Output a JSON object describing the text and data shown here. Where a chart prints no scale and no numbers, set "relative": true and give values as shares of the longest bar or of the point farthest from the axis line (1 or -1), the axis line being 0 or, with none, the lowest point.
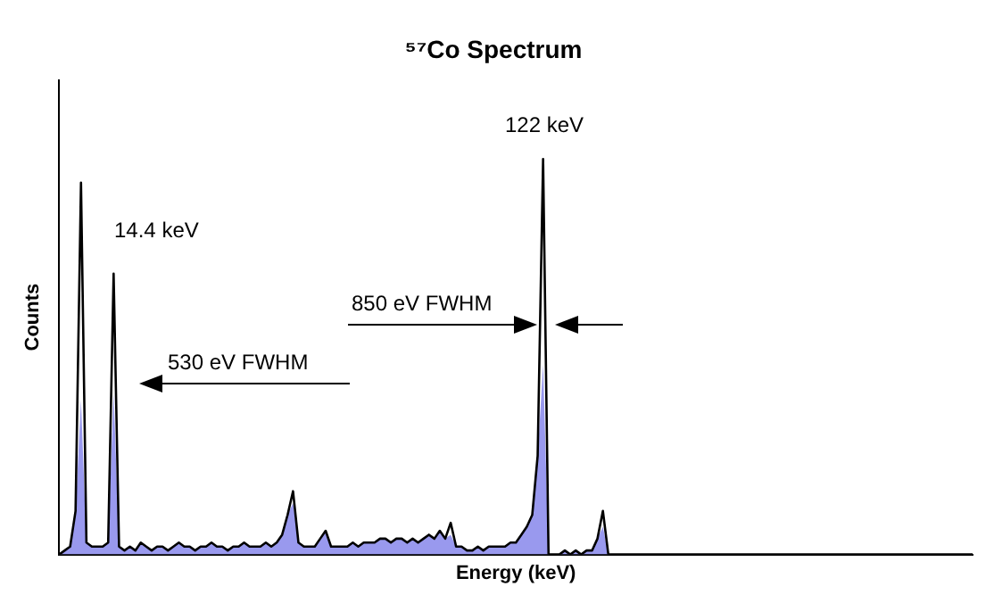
{
  "chart_data": {
    "type": "area",
    "title": "⁵⁷Co Spectrum",
    "xlabel": "Energy (keV)",
    "ylabel": "Counts",
    "relative": true,
    "legend": false,
    "grid": false,
    "categories": [
      null,
      null,
      null,
      null,
      null,
      null,
      null,
      null,
      null,
      null,
      null,
      null,
      null,
      null,
      null,
      null,
      null,
      null,
      null,
      null,
      null,
      null,
      null,
      null,
      null,
      null,
      null,
      null,
      null,
      null,
      null,
      null,
      null,
      null,
      null,
      null,
      null,
      null,
      null,
      null,
      null,
      null,
      null,
      null,
      null,
      null,
      null,
      null,
      null,
      null,
      null,
      null,
      null,
      null,
      null,
      null,
      null,
      null,
      null,
      null,
      null,
      null,
      null,
      null,
      null,
      null,
      null,
      null,
      null,
      null,
      null,
      null,
      null,
      null,
      null,
      null,
      null,
      null,
      null,
      null,
      null,
      null,
      null,
      null,
      null,
      null,
      null,
      null,
      null,
      null,
      null,
      null,
      null,
      null,
      null,
      null,
      null,
      null,
      null,
      null,
      null,
      null,
      null,
      null,
      null,
      null,
      null,
      null,
      null,
      null,
      null,
      null,
      null,
      null,
      null,
      null,
      null,
      null,
      null,
      null,
      null,
      null,
      null,
      null,
      null,
      null,
      null,
      null,
      null,
      null,
      null,
      null,
      null,
      null,
      null,
      null,
      null,
      null,
      null,
      null,
      null,
      null,
      null,
      null,
      null,
      null,
      null,
      null,
      null,
      null,
      null,
      null,
      null,
      null,
      null,
      null,
      null,
      null,
      null,
      null,
      null,
      null,
      null,
      null,
      null,
      null,
      null,
      null,
      null
    ],
    "series": [
      {
        "color": "#9999ee",
        "values": [
          0,
          0.01,
          0.02,
          0.11,
          0.39,
          0.03,
          0.02,
          0.02,
          0.02,
          0.03,
          0.41,
          0.02,
          0.01,
          0.02,
          0.01,
          0.03,
          0.02,
          0.01,
          0.02,
          0.02,
          0.01,
          0.02,
          0.03,
          0.02,
          0.02,
          0.01,
          0.02,
          0.02,
          0.03,
          0.02,
          0.02,
          0.01,
          0.02,
          0.02,
          0.03,
          0.02,
          0.02,
          0.02,
          0.03,
          0.02,
          0.03,
          0.05,
          0.1,
          0.13,
          0.03,
          0.02,
          0.02,
          0.02,
          0.04,
          0.06,
          0.02,
          0.02,
          0.02,
          0.02,
          0.03,
          0.02,
          0.03,
          0.03,
          0.03,
          0.04,
          0.04,
          0.03,
          0.04,
          0.04,
          0.03,
          0.04,
          0.03,
          0.04,
          0.05,
          0.04,
          0.06,
          0.04,
          0.05,
          0.02,
          0.02,
          0.01,
          0.01,
          0.02,
          0.01,
          0.02,
          0.02,
          0.02,
          0.02,
          0.03,
          0.03,
          0.05,
          0.07,
          0.1,
          0.25,
          0.48,
          0,
          0,
          0,
          0.01,
          0,
          0.01,
          0,
          0.01,
          0.01,
          0.04,
          0.07,
          0,
          0,
          0,
          0,
          0,
          0,
          0,
          0,
          0,
          0,
          0,
          0,
          0,
          0,
          0,
          0,
          0,
          0,
          0,
          0,
          0,
          0,
          0,
          0,
          0,
          0,
          0,
          0,
          0,
          0,
          0,
          0,
          0,
          0,
          0,
          0,
          0,
          0,
          0,
          0,
          0,
          0,
          0,
          0,
          0,
          0,
          0,
          0,
          0,
          0,
          0,
          0,
          0,
          0,
          0,
          0,
          0,
          0,
          0,
          0,
          0,
          0,
          0,
          0,
          0,
          0,
          0,
          0
        ]
      },
      {
        "type": "line",
        "color": "#000000",
        "values": [
          0,
          0.01,
          0.02,
          0.11,
          0.94,
          0.03,
          0.02,
          0.02,
          0.02,
          0.03,
          0.71,
          0.02,
          0.01,
          0.02,
          0.01,
          0.03,
          0.02,
          0.01,
          0.02,
          0.02,
          0.01,
          0.02,
          0.03,
          0.02,
          0.02,
          0.01,
          0.02,
          0.02,
          0.03,
          0.02,
          0.02,
          0.01,
          0.02,
          0.02,
          0.03,
          0.02,
          0.02,
          0.02,
          0.03,
          0.02,
          0.03,
          0.05,
          0.1,
          0.16,
          0.03,
          0.02,
          0.02,
          0.02,
          0.04,
          0.06,
          0.02,
          0.02,
          0.02,
          0.02,
          0.03,
          0.02,
          0.03,
          0.03,
          0.03,
          0.04,
          0.04,
          0.03,
          0.04,
          0.04,
          0.03,
          0.04,
          0.03,
          0.04,
          0.05,
          0.04,
          0.06,
          0.04,
          0.08,
          0.02,
          0.02,
          0.01,
          0.01,
          0.02,
          0.01,
          0.02,
          0.02,
          0.02,
          0.02,
          0.03,
          0.03,
          0.05,
          0.07,
          0.1,
          0.25,
          1,
          0,
          0,
          0,
          0.01,
          0,
          0.01,
          0,
          0.01,
          0.01,
          0.04,
          0.11,
          0,
          0,
          0,
          0,
          0,
          0,
          0,
          0,
          0,
          0,
          0,
          0,
          0,
          0,
          0,
          0,
          0,
          0,
          0,
          0,
          0,
          0,
          0,
          0,
          0,
          0,
          0,
          0,
          0,
          0,
          0,
          0,
          0,
          0,
          0,
          0,
          0,
          0,
          0,
          0,
          0,
          0,
          0,
          0,
          0,
          0,
          0,
          0,
          0,
          0,
          0,
          0,
          0,
          0,
          0,
          0,
          0,
          0,
          0,
          0,
          0,
          0,
          0,
          0,
          0,
          0,
          0,
          0
        ]
      }
    ],
    "annotations": [
      "14.4 keV",
      "122 keV",
      "530 eV FWHM",
      "850 eV FWHM"
    ]
  }
}
